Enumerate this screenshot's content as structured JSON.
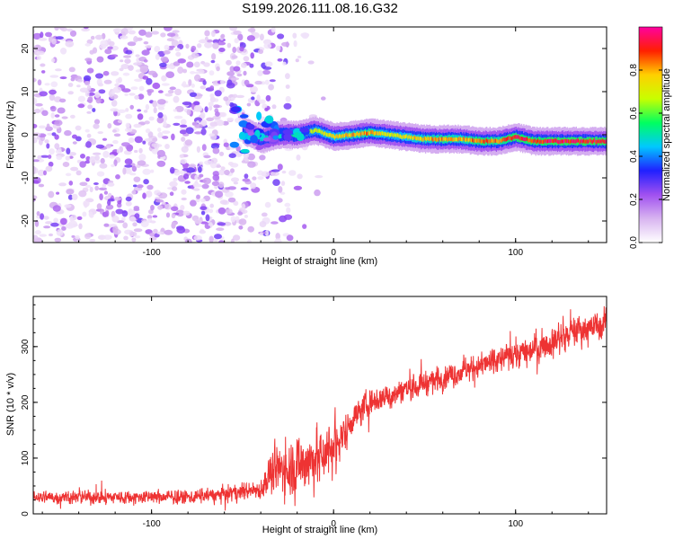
{
  "title": "S199.2026.111.08.16.G32",
  "chart_data": [
    {
      "type": "heatmap",
      "name": "spectrogram",
      "xlabel": "Height of straight line (km)",
      "ylabel": "Frequency (Hz)",
      "xlim": [
        -165,
        150
      ],
      "ylim": [
        -25,
        25
      ],
      "xticks": [
        -100,
        0,
        100
      ],
      "xtick_labels": [
        "-100",
        "0",
        "100"
      ],
      "yticks": [
        -20,
        -10,
        0,
        10,
        20
      ],
      "ytick_labels": [
        "-20",
        "-10",
        "0",
        "10",
        "20"
      ],
      "colorbar": {
        "label": "Normalized spectral amplitude",
        "range": [
          0,
          1
        ],
        "ticks": [
          0.0,
          0.2,
          0.4,
          0.6,
          0.8
        ],
        "tick_labels": [
          "0.0",
          "0.2",
          "0.4",
          "0.6",
          "0.8"
        ],
        "colors": [
          "#ffffff",
          "#d8b4f0",
          "#a050f0",
          "#2020ff",
          "#00c8ff",
          "#00ff60",
          "#c8ff00",
          "#ffd000",
          "#ff2000",
          "#ff00a0"
        ]
      },
      "signal_track": {
        "x": [
          -50,
          -45,
          -40,
          -30,
          -20,
          -10,
          0,
          10,
          20,
          30,
          40,
          50,
          60,
          70,
          80,
          90,
          100,
          110,
          120,
          130,
          150
        ],
        "frequency": [
          1,
          0,
          -1,
          0,
          0,
          1,
          -0.5,
          0,
          0.5,
          0,
          -0.5,
          -1,
          -1,
          -1,
          -1.5,
          -1.5,
          -0.5,
          -1.5,
          -1.5,
          -1.5,
          -1.5
        ],
        "amplitude": [
          0.35,
          0.45,
          0.5,
          0.55,
          0.6,
          0.7,
          0.75,
          0.8,
          0.85,
          0.7,
          0.75,
          0.8,
          0.85,
          0.8,
          0.9,
          0.85,
          0.95,
          0.9,
          0.95,
          0.95,
          0.95
        ]
      },
      "noise_region_x": [
        -165,
        -20
      ]
    },
    {
      "type": "line",
      "name": "snr",
      "xlabel": "Height of straight line (km)",
      "ylabel": "SNR (10 * v/v)",
      "xlim": [
        -165,
        150
      ],
      "ylim": [
        0,
        390
      ],
      "xticks": [
        -100,
        0,
        100
      ],
      "xtick_labels": [
        "-100",
        "0",
        "100"
      ],
      "yticks": [
        0,
        100,
        200,
        300
      ],
      "ytick_labels": [
        "0",
        "100",
        "200",
        "300"
      ],
      "color": "#ee3333",
      "series": [
        {
          "name": "SNR",
          "x": [
            -165,
            -140,
            -100,
            -80,
            -60,
            -50,
            -40,
            -35,
            -30,
            -25,
            -20,
            -15,
            -10,
            -5,
            0,
            5,
            10,
            20,
            40,
            60,
            80,
            100,
            120,
            135,
            150
          ],
          "mean": [
            30,
            30,
            30,
            30,
            35,
            40,
            45,
            70,
            80,
            85,
            90,
            95,
            100,
            110,
            120,
            140,
            170,
            200,
            225,
            245,
            265,
            285,
            310,
            330,
            340
          ],
          "spread": [
            12,
            12,
            12,
            12,
            14,
            15,
            18,
            35,
            45,
            50,
            55,
            55,
            50,
            50,
            50,
            35,
            25,
            25,
            22,
            22,
            22,
            25,
            25,
            25,
            25
          ]
        }
      ]
    }
  ]
}
